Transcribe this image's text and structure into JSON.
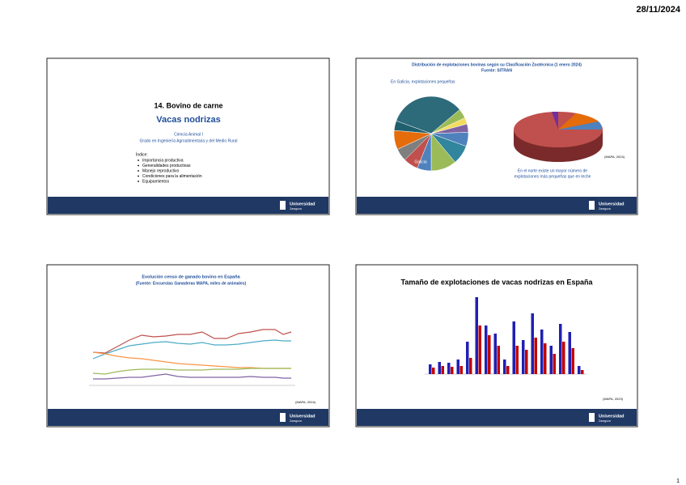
{
  "header": {
    "date": "28/11/2024"
  },
  "footer": {
    "page": "1",
    "logo": "Universidad",
    "logo_sub": "Zaragoza"
  },
  "slides": [
    {
      "title": "14. Bovino de carne",
      "subtitle": "Vacas nodrizas",
      "course": "Ciencia Animal I",
      "degree": "Grado en Ingeniería Agroalimentaria y del Medio Rural",
      "index_title": "Índice:",
      "index": [
        "Importancia productiva",
        "Generalidades productivas",
        "Manejo reproductivo",
        "Condiciones para la alimentación",
        "Equipamientos"
      ]
    },
    {
      "title": "Distribución de explotaciones bovinas según su Clasificación Zootécnica (1 enero 2024)",
      "source": "Fuente: SITRAN",
      "note": "En Galicia, explotaciones pequeñas",
      "pie_label": "Galicia",
      "caption": [
        "En el norte existe un mayor número de",
        "explotaciones más pequeñas que en leche"
      ],
      "ref": "(MAPA, 2024)"
    },
    {
      "title": "Evolución censo de ganado bovino en España",
      "source": "(Fuente: Encuestas Ganaderas MAPA, miles de animales)",
      "ref": "(MAPA, 2024)"
    },
    {
      "title": "Tamaño de explotaciones de vacas nodrizas en España",
      "ref": "(MAPA, 2023)"
    }
  ]
}
